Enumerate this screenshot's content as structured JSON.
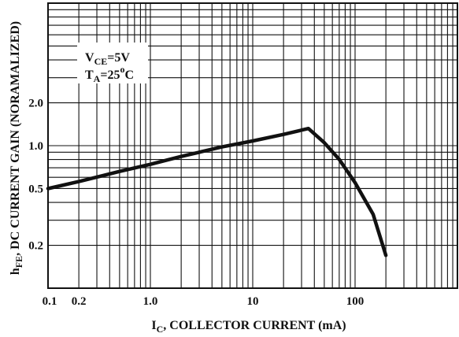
{
  "chart_data": {
    "type": "line",
    "title": "",
    "xscale": "log",
    "yscale": "log",
    "xlim": [
      0.1,
      1000
    ],
    "ylim": [
      0.1,
      10
    ],
    "grid": true,
    "xlabel": {
      "main": "I",
      "sub": "C",
      "rest": ", COLLECTOR CURRENT (mA)"
    },
    "ylabel": {
      "main": "h",
      "sub": "FE",
      "rest": ", DC CURRENT GAIN (NORAMALIZED)"
    },
    "xticks": [
      {
        "value": 0.1,
        "label": "0.1"
      },
      {
        "value": 0.2,
        "label": "0.2"
      },
      {
        "value": 1.0,
        "label": "1.0"
      },
      {
        "value": 10,
        "label": "10"
      },
      {
        "value": 100,
        "label": "100"
      }
    ],
    "yticks": [
      {
        "value": 2.0,
        "label": "2.0"
      },
      {
        "value": 1.0,
        "label": "1.0"
      },
      {
        "value": 0.5,
        "label": "0.5"
      },
      {
        "value": 0.2,
        "label": "0.2"
      }
    ],
    "annotation": {
      "line1": {
        "main": "V",
        "sub": "CE",
        "rest": "=5V"
      },
      "line2": {
        "main": "T",
        "sub": "A",
        "rest": "=25",
        "sup": "o",
        "unit": "C"
      }
    },
    "series": [
      {
        "x": [
          0.1,
          0.2,
          0.5,
          1,
          2,
          5,
          10,
          20,
          35,
          50,
          70,
          100,
          150,
          200
        ],
        "y": [
          0.5,
          0.56,
          0.66,
          0.74,
          0.84,
          0.98,
          1.08,
          1.2,
          1.32,
          1.05,
          0.8,
          0.55,
          0.33,
          0.17
        ]
      }
    ]
  }
}
